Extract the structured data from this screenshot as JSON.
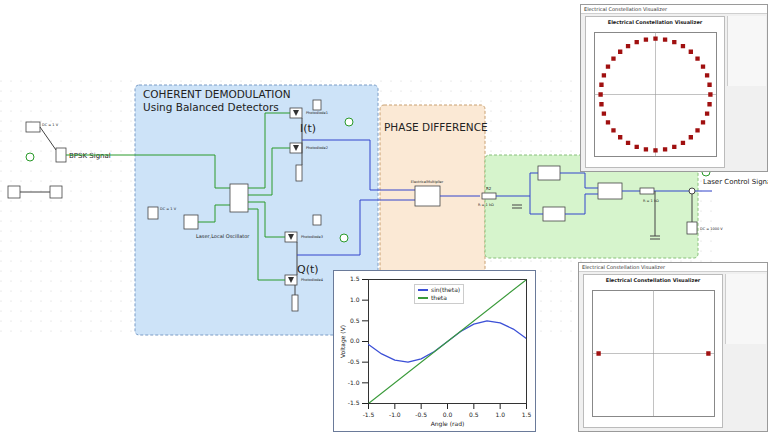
{
  "schematic": {
    "blocks": {
      "demod": {
        "title": "COHERENT DEMODULATION",
        "subtitle": "Using Balanced Detectors"
      },
      "phase": {
        "title": "PHASE DIFFERENCE"
      }
    },
    "labels": {
      "bpsk": "BPSK Signal",
      "lo": "Laser,Local Oscillator",
      "i": "I(t)",
      "q": "Q(t)",
      "control": "Laser Control Signal"
    },
    "components": {
      "vdc_left": "DC = 1 V",
      "vdc_lo": "DC = 1 V",
      "pd1": "Photodiode1",
      "pd2": "Photodiode2",
      "pd3": "Photodiode3",
      "pd4": "Photodiode4",
      "mult": "ElectricalMultiplier",
      "r2": "R2",
      "r2v": "R = 1 kΩ",
      "r6v": "R = 1 kΩ",
      "vdc_out": "DC = 1000 V"
    }
  },
  "chart_data": {
    "type": "line",
    "x_label": "Angle (rad)",
    "y_label": "Voltage (V)",
    "xlim": [
      -1.5,
      1.5
    ],
    "ylim": [
      -1.5,
      1.5
    ],
    "xticks": [
      -1.5,
      {
        "value": -1.0,
        "label": "-1.0"
      },
      -0.5,
      {
        "value": 0,
        "label": "0.0"
      },
      0.5,
      {
        "value": 1.0,
        "label": "1.0"
      },
      1.5
    ],
    "yticks": [
      -1.5,
      {
        "value": -1.0,
        "label": "-1.0"
      },
      -0.5,
      {
        "value": 0,
        "label": "0.0"
      },
      0.5,
      {
        "value": 1.0,
        "label": "1.0"
      },
      1.5
    ],
    "legend": "top",
    "series": [
      {
        "name": "sin(theta)",
        "color": "#3b4fd6",
        "x": [
          -1.5,
          -1.25,
          -1.0,
          -0.75,
          -0.5,
          -0.25,
          0,
          0.25,
          0.5,
          0.75,
          1.0,
          1.25,
          1.5
        ],
        "values": [
          -0.07,
          -0.3,
          -0.45,
          -0.5,
          -0.42,
          -0.24,
          0,
          0.24,
          0.42,
          0.5,
          0.45,
          0.3,
          0.07
        ]
      },
      {
        "name": "theta",
        "color": "#3a9a3a",
        "x": [
          -1.5,
          1.5
        ],
        "values": [
          -1.5,
          1.5
        ]
      }
    ]
  },
  "constellations": [
    {
      "type": "scatter",
      "title": "Electrical Constellation Visualizer",
      "color": "#a01010",
      "xlim": [
        -1,
        1
      ],
      "ylim": [
        -1,
        1
      ],
      "tick_labels": false,
      "x": [
        0.9,
        0.886,
        0.846,
        0.779,
        0.689,
        0.579,
        0.45,
        0.308,
        0.157,
        0,
        -0.157,
        -0.308,
        -0.45,
        -0.579,
        -0.689,
        -0.779,
        -0.846,
        -0.886,
        -0.9,
        -0.886,
        -0.846,
        -0.779,
        -0.689,
        -0.579,
        -0.45,
        -0.308,
        -0.157,
        0,
        0.157,
        0.308,
        0.45,
        0.579,
        0.689,
        0.779,
        0.846,
        0.886
      ],
      "y": [
        0,
        0.157,
        0.308,
        0.45,
        0.579,
        0.689,
        0.779,
        0.846,
        0.886,
        0.9,
        0.886,
        0.846,
        0.779,
        0.689,
        0.579,
        0.45,
        0.308,
        0.157,
        0,
        -0.157,
        -0.308,
        -0.45,
        -0.579,
        -0.689,
        -0.779,
        -0.846,
        -0.886,
        -0.9,
        -0.886,
        -0.846,
        -0.779,
        -0.689,
        -0.579,
        -0.45,
        -0.308,
        -0.157
      ]
    },
    {
      "type": "scatter",
      "title": "Electrical Constellation Visualizer",
      "color": "#a01010",
      "xlim": [
        -1,
        1
      ],
      "ylim": [
        -1,
        1
      ],
      "tick_labels": false,
      "x": [
        -0.9,
        0.9
      ],
      "y": [
        0,
        0
      ]
    }
  ]
}
